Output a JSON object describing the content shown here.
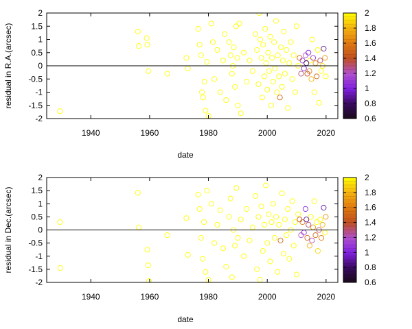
{
  "colors": {
    "background": "#ffffff",
    "axis": "#000000",
    "zero_line": "#000000",
    "palette_stops": [
      "#1a0a1a",
      "#6a0fb0",
      "#a040f0",
      "#c06030",
      "#e08020",
      "#f0b020",
      "#ffff00"
    ]
  },
  "chart_data": [
    {
      "type": "scatter",
      "title": "",
      "xlabel": "date",
      "ylabel": "residual in R.A.(arcsec)",
      "xlim": [
        1925,
        2024
      ],
      "ylim": [
        -2,
        2
      ],
      "xticks": [
        1940,
        1960,
        1980,
        2000,
        2020
      ],
      "yticks": [
        -2,
        -1.5,
        -1,
        -0.5,
        0,
        0.5,
        1,
        1.5,
        2
      ],
      "ytick_labels": [
        "-2",
        "-1.5",
        "-1",
        "-0.5",
        "0",
        "0.5",
        "1",
        "1.5",
        "2"
      ],
      "zero_line": true,
      "colorbar": {
        "range": [
          0.6,
          2
        ],
        "ticks": [
          0.6,
          0.8,
          1,
          1.2,
          1.4,
          1.6,
          1.8,
          2
        ],
        "tick_labels": [
          "0.6",
          "0.8",
          "1",
          "1.2",
          "1.4",
          "1.6",
          "1.8",
          "2"
        ]
      },
      "marker": "open-circle",
      "points": [
        {
          "x": 1929.5,
          "y": -1.72,
          "c": 2.0
        },
        {
          "x": 1956.0,
          "y": 1.3,
          "c": 2.0
        },
        {
          "x": 1956.3,
          "y": 0.75,
          "c": 2.0
        },
        {
          "x": 1959.0,
          "y": 1.05,
          "c": 2.0
        },
        {
          "x": 1959.2,
          "y": 0.8,
          "c": 2.0
        },
        {
          "x": 1959.6,
          "y": -0.2,
          "c": 2.0
        },
        {
          "x": 1966.0,
          "y": -0.3,
          "c": 2.0
        },
        {
          "x": 1972.5,
          "y": 0.3,
          "c": 2.0
        },
        {
          "x": 1973.0,
          "y": -0.1,
          "c": 2.0
        },
        {
          "x": 1976.5,
          "y": 1.4,
          "c": 2.0
        },
        {
          "x": 1977.0,
          "y": 0.8,
          "c": 2.0
        },
        {
          "x": 1977.5,
          "y": 0.4,
          "c": 2.0
        },
        {
          "x": 1977.8,
          "y": -1.0,
          "c": 2.0
        },
        {
          "x": 1978.2,
          "y": -1.2,
          "c": 2.0
        },
        {
          "x": 1978.6,
          "y": -0.6,
          "c": 2.0
        },
        {
          "x": 1979.0,
          "y": -1.7,
          "c": 2.0
        },
        {
          "x": 1979.5,
          "y": 0.15,
          "c": 2.0
        },
        {
          "x": 1980.0,
          "y": -1.9,
          "c": 2.0
        },
        {
          "x": 1981.0,
          "y": 1.6,
          "c": 2.0
        },
        {
          "x": 1981.5,
          "y": 0.9,
          "c": 2.0
        },
        {
          "x": 1982.0,
          "y": -0.5,
          "c": 2.0
        },
        {
          "x": 1983.0,
          "y": 0.6,
          "c": 2.0
        },
        {
          "x": 1984.0,
          "y": -1.0,
          "c": 2.0
        },
        {
          "x": 1985.0,
          "y": 0.2,
          "c": 2.0
        },
        {
          "x": 1985.5,
          "y": 1.2,
          "c": 2.0
        },
        {
          "x": 1986.0,
          "y": -1.3,
          "c": 2.0
        },
        {
          "x": 1987.0,
          "y": 0.9,
          "c": 2.0
        },
        {
          "x": 1987.5,
          "y": 0.4,
          "c": 2.0
        },
        {
          "x": 1988.0,
          "y": -0.3,
          "c": 2.0
        },
        {
          "x": 1988.3,
          "y": 0.0,
          "c": 2.0
        },
        {
          "x": 1988.6,
          "y": 0.7,
          "c": 2.0
        },
        {
          "x": 1989.0,
          "y": -0.8,
          "c": 2.0
        },
        {
          "x": 1989.4,
          "y": 1.5,
          "c": 2.0
        },
        {
          "x": 1989.8,
          "y": 0.3,
          "c": 2.0
        },
        {
          "x": 1990.0,
          "y": -1.5,
          "c": 2.0
        },
        {
          "x": 1990.5,
          "y": 1.6,
          "c": 2.0
        },
        {
          "x": 1991.0,
          "y": -1.8,
          "c": 2.0
        },
        {
          "x": 1992.0,
          "y": 0.5,
          "c": 2.0
        },
        {
          "x": 1993.0,
          "y": -0.6,
          "c": 2.0
        },
        {
          "x": 1994.0,
          "y": 0.2,
          "c": 2.0
        },
        {
          "x": 1995.0,
          "y": -0.2,
          "c": 2.0
        },
        {
          "x": 1996.0,
          "y": 1.2,
          "c": 2.0
        },
        {
          "x": 1996.5,
          "y": 0.6,
          "c": 2.0
        },
        {
          "x": 1997.0,
          "y": -0.7,
          "c": 2.0
        },
        {
          "x": 1997.3,
          "y": 2.0,
          "c": 2.0
        },
        {
          "x": 1997.6,
          "y": 1.0,
          "c": 2.0
        },
        {
          "x": 1998.0,
          "y": 0.3,
          "c": 2.0
        },
        {
          "x": 1998.3,
          "y": -1.2,
          "c": 2.0
        },
        {
          "x": 1998.6,
          "y": 0.8,
          "c": 2.0
        },
        {
          "x": 1999.0,
          "y": -0.4,
          "c": 2.0
        },
        {
          "x": 1999.3,
          "y": 1.4,
          "c": 2.0
        },
        {
          "x": 1999.6,
          "y": 0.1,
          "c": 2.0
        },
        {
          "x": 2000.0,
          "y": -0.9,
          "c": 2.0
        },
        {
          "x": 2000.3,
          "y": 0.5,
          "c": 2.0
        },
        {
          "x": 2000.6,
          "y": -0.2,
          "c": 2.0
        },
        {
          "x": 2001.0,
          "y": 1.1,
          "c": 2.0
        },
        {
          "x": 2001.3,
          "y": -1.5,
          "c": 2.0
        },
        {
          "x": 2001.6,
          "y": 0.3,
          "c": 2.0
        },
        {
          "x": 2002.0,
          "y": -0.6,
          "c": 2.0
        },
        {
          "x": 2002.3,
          "y": 0.9,
          "c": 2.0
        },
        {
          "x": 2002.6,
          "y": -0.1,
          "c": 2.0
        },
        {
          "x": 2003.0,
          "y": 1.7,
          "c": 2.0
        },
        {
          "x": 2003.3,
          "y": -1.0,
          "c": 2.0
        },
        {
          "x": 2003.6,
          "y": 0.4,
          "c": 2.0
        },
        {
          "x": 2004.0,
          "y": -0.4,
          "c": 2.0
        },
        {
          "x": 2004.3,
          "y": -1.2,
          "c": 1.5
        },
        {
          "x": 2004.6,
          "y": 0.7,
          "c": 2.0
        },
        {
          "x": 2005.0,
          "y": -0.8,
          "c": 2.0
        },
        {
          "x": 2005.3,
          "y": 0.2,
          "c": 2.0
        },
        {
          "x": 2005.6,
          "y": 1.3,
          "c": 2.0
        },
        {
          "x": 2006.0,
          "y": -0.3,
          "c": 2.0
        },
        {
          "x": 2006.5,
          "y": 0.6,
          "c": 2.0
        },
        {
          "x": 2007.0,
          "y": -1.6,
          "c": 2.0
        },
        {
          "x": 2007.5,
          "y": 0.1,
          "c": 2.0
        },
        {
          "x": 2008.0,
          "y": 0.9,
          "c": 2.0
        },
        {
          "x": 2008.5,
          "y": -0.5,
          "c": 2.0
        },
        {
          "x": 2009.0,
          "y": 0.4,
          "c": 2.0
        },
        {
          "x": 2009.5,
          "y": -1.0,
          "c": 2.0
        },
        {
          "x": 2010.0,
          "y": 1.5,
          "c": 2.0
        },
        {
          "x": 2010.5,
          "y": 0.0,
          "c": 2.0
        },
        {
          "x": 2011.0,
          "y": 0.3,
          "c": 1.5
        },
        {
          "x": 2011.5,
          "y": -0.3,
          "c": 1.3
        },
        {
          "x": 2012.0,
          "y": 0.2,
          "c": 1.1
        },
        {
          "x": 2012.5,
          "y": -0.1,
          "c": 1.0
        },
        {
          "x": 2013.0,
          "y": 0.4,
          "c": 1.2
        },
        {
          "x": 2013.3,
          "y": 0.1,
          "c": 0.8
        },
        {
          "x": 2013.6,
          "y": -0.3,
          "c": 1.4
        },
        {
          "x": 2014.0,
          "y": 0.5,
          "c": 1.0
        },
        {
          "x": 2014.3,
          "y": -0.2,
          "c": 1.6
        },
        {
          "x": 2014.6,
          "y": 0.2,
          "c": 2.0
        },
        {
          "x": 2015.0,
          "y": -0.5,
          "c": 1.8
        },
        {
          "x": 2015.3,
          "y": 1.0,
          "c": 2.0
        },
        {
          "x": 2015.6,
          "y": 0.3,
          "c": 1.1
        },
        {
          "x": 2016.0,
          "y": -1.0,
          "c": 2.0
        },
        {
          "x": 2016.4,
          "y": 0.1,
          "c": 1.7
        },
        {
          "x": 2016.8,
          "y": -0.4,
          "c": 1.5
        },
        {
          "x": 2017.2,
          "y": 0.6,
          "c": 2.0
        },
        {
          "x": 2017.6,
          "y": -1.4,
          "c": 2.0
        },
        {
          "x": 2018.0,
          "y": 0.2,
          "c": 1.3
        },
        {
          "x": 2018.4,
          "y": -0.2,
          "c": 2.0
        },
        {
          "x": 2018.8,
          "y": 0.0,
          "c": 1.9
        },
        {
          "x": 2019.2,
          "y": 0.65,
          "c": 0.9
        },
        {
          "x": 2019.6,
          "y": 0.3,
          "c": 1.7
        },
        {
          "x": 2019.9,
          "y": -0.4,
          "c": 2.0
        }
      ]
    },
    {
      "type": "scatter",
      "title": "",
      "xlabel": "date",
      "ylabel": "residual in Dec.(arcsec)",
      "xlim": [
        1925,
        2024
      ],
      "ylim": [
        -2,
        2
      ],
      "xticks": [
        1940,
        1960,
        1980,
        2000,
        2020
      ],
      "yticks": [
        -2,
        -1.5,
        -1,
        -0.5,
        0,
        0.5,
        1,
        1.5,
        2
      ],
      "ytick_labels": [
        "-2",
        "-1.5",
        "-1",
        "-0.5",
        "0",
        "0.5",
        "1",
        "1.5",
        "2"
      ],
      "zero_line": true,
      "colorbar": {
        "range": [
          0.6,
          2
        ],
        "ticks": [
          0.6,
          0.8,
          1,
          1.2,
          1.4,
          1.6,
          1.8,
          2
        ],
        "tick_labels": [
          "0.6",
          "0.8",
          "1",
          "1.2",
          "1.4",
          "1.6",
          "1.8",
          "2"
        ]
      },
      "marker": "open-circle",
      "points": [
        {
          "x": 1929.5,
          "y": 0.3,
          "c": 2.0
        },
        {
          "x": 1929.6,
          "y": -1.45,
          "c": 2.0
        },
        {
          "x": 1956.0,
          "y": 1.42,
          "c": 2.0
        },
        {
          "x": 1956.3,
          "y": 0.1,
          "c": 2.0
        },
        {
          "x": 1959.2,
          "y": -0.75,
          "c": 2.0
        },
        {
          "x": 1959.5,
          "y": -1.35,
          "c": 2.0
        },
        {
          "x": 1959.8,
          "y": -1.95,
          "c": 2.0
        },
        {
          "x": 1966.0,
          "y": -0.2,
          "c": 2.0
        },
        {
          "x": 1972.5,
          "y": 0.45,
          "c": 2.0
        },
        {
          "x": 1973.0,
          "y": -0.95,
          "c": 2.0
        },
        {
          "x": 1976.5,
          "y": 1.35,
          "c": 2.0
        },
        {
          "x": 1977.0,
          "y": 0.8,
          "c": 2.0
        },
        {
          "x": 1977.5,
          "y": -0.3,
          "c": 2.0
        },
        {
          "x": 1978.0,
          "y": -1.1,
          "c": 2.0
        },
        {
          "x": 1978.5,
          "y": 0.3,
          "c": 2.0
        },
        {
          "x": 1979.0,
          "y": -1.6,
          "c": 2.0
        },
        {
          "x": 1979.5,
          "y": 1.5,
          "c": 2.0
        },
        {
          "x": 1980.0,
          "y": -1.9,
          "c": 2.0
        },
        {
          "x": 1981.0,
          "y": 1.0,
          "c": 2.0
        },
        {
          "x": 1982.0,
          "y": -0.5,
          "c": 2.0
        },
        {
          "x": 1983.0,
          "y": 0.2,
          "c": 2.0
        },
        {
          "x": 1984.0,
          "y": 0.75,
          "c": 2.0
        },
        {
          "x": 1985.0,
          "y": -0.7,
          "c": 2.0
        },
        {
          "x": 1986.0,
          "y": -1.4,
          "c": 2.0
        },
        {
          "x": 1987.0,
          "y": 0.5,
          "c": 2.0
        },
        {
          "x": 1987.5,
          "y": 1.2,
          "c": 2.0
        },
        {
          "x": 1988.0,
          "y": -1.8,
          "c": 2.0
        },
        {
          "x": 1988.5,
          "y": 0.0,
          "c": 2.0
        },
        {
          "x": 1989.0,
          "y": -0.6,
          "c": 2.0
        },
        {
          "x": 1989.5,
          "y": 1.6,
          "c": 2.0
        },
        {
          "x": 1990.0,
          "y": -0.3,
          "c": 2.0
        },
        {
          "x": 1991.0,
          "y": 0.4,
          "c": 2.0
        },
        {
          "x": 1992.0,
          "y": -1.0,
          "c": 2.0
        },
        {
          "x": 1993.0,
          "y": 0.8,
          "c": 2.0
        },
        {
          "x": 1994.0,
          "y": -0.4,
          "c": 2.0
        },
        {
          "x": 1995.0,
          "y": 0.1,
          "c": 2.0
        },
        {
          "x": 1996.0,
          "y": 1.3,
          "c": 2.0
        },
        {
          "x": 1996.5,
          "y": -1.5,
          "c": 2.0
        },
        {
          "x": 1997.0,
          "y": 0.5,
          "c": 2.0
        },
        {
          "x": 1997.5,
          "y": -1.9,
          "c": 2.0
        },
        {
          "x": 1998.0,
          "y": 0.9,
          "c": 2.0
        },
        {
          "x": 1998.5,
          "y": -0.8,
          "c": 2.0
        },
        {
          "x": 1999.0,
          "y": 0.2,
          "c": 2.0
        },
        {
          "x": 1999.5,
          "y": 1.7,
          "c": 2.0
        },
        {
          "x": 2000.0,
          "y": -0.5,
          "c": 2.0
        },
        {
          "x": 2000.5,
          "y": 0.6,
          "c": 2.0
        },
        {
          "x": 2001.0,
          "y": -1.2,
          "c": 2.0
        },
        {
          "x": 2001.5,
          "y": 0.3,
          "c": 2.0
        },
        {
          "x": 2002.0,
          "y": 1.0,
          "c": 2.0
        },
        {
          "x": 2002.5,
          "y": -0.3,
          "c": 2.0
        },
        {
          "x": 2003.0,
          "y": 0.5,
          "c": 2.0
        },
        {
          "x": 2003.5,
          "y": -1.6,
          "c": 2.0
        },
        {
          "x": 2004.0,
          "y": 0.2,
          "c": 2.0
        },
        {
          "x": 2004.5,
          "y": -0.4,
          "c": 1.5
        },
        {
          "x": 2005.0,
          "y": 1.4,
          "c": 2.0
        },
        {
          "x": 2005.5,
          "y": -0.9,
          "c": 2.0
        },
        {
          "x": 2006.0,
          "y": 0.4,
          "c": 2.0
        },
        {
          "x": 2006.5,
          "y": -0.2,
          "c": 2.0
        },
        {
          "x": 2007.0,
          "y": 0.8,
          "c": 2.0
        },
        {
          "x": 2007.5,
          "y": -1.1,
          "c": 2.0
        },
        {
          "x": 2008.0,
          "y": 0.0,
          "c": 2.0
        },
        {
          "x": 2008.5,
          "y": 1.1,
          "c": 2.0
        },
        {
          "x": 2009.0,
          "y": -0.6,
          "c": 2.0
        },
        {
          "x": 2009.5,
          "y": 0.3,
          "c": 2.0
        },
        {
          "x": 2010.0,
          "y": -1.7,
          "c": 2.0
        },
        {
          "x": 2010.5,
          "y": 0.6,
          "c": 2.0
        },
        {
          "x": 2011.0,
          "y": 0.4,
          "c": 1.4
        },
        {
          "x": 2011.5,
          "y": -0.2,
          "c": 1.2
        },
        {
          "x": 2012.0,
          "y": 0.3,
          "c": 1.6
        },
        {
          "x": 2012.5,
          "y": -0.1,
          "c": 1.1
        },
        {
          "x": 2013.0,
          "y": 0.8,
          "c": 1.0
        },
        {
          "x": 2013.3,
          "y": 0.4,
          "c": 0.9
        },
        {
          "x": 2013.6,
          "y": -0.3,
          "c": 1.5
        },
        {
          "x": 2014.0,
          "y": 0.2,
          "c": 1.3
        },
        {
          "x": 2014.4,
          "y": -0.6,
          "c": 1.8
        },
        {
          "x": 2014.8,
          "y": 0.5,
          "c": 2.0
        },
        {
          "x": 2015.2,
          "y": -0.4,
          "c": 1.2
        },
        {
          "x": 2015.6,
          "y": 0.1,
          "c": 1.7
        },
        {
          "x": 2016.0,
          "y": 1.1,
          "c": 2.0
        },
        {
          "x": 2016.4,
          "y": -0.2,
          "c": 1.5
        },
        {
          "x": 2016.8,
          "y": 0.3,
          "c": 2.0
        },
        {
          "x": 2017.2,
          "y": -0.8,
          "c": 1.9
        },
        {
          "x": 2017.6,
          "y": 0.0,
          "c": 1.3
        },
        {
          "x": 2018.0,
          "y": 0.4,
          "c": 2.0
        },
        {
          "x": 2018.4,
          "y": -0.3,
          "c": 1.6
        },
        {
          "x": 2018.8,
          "y": 0.2,
          "c": 1.8
        },
        {
          "x": 2019.2,
          "y": 0.85,
          "c": 0.9
        },
        {
          "x": 2019.6,
          "y": -0.1,
          "c": 2.0
        },
        {
          "x": 2019.9,
          "y": 0.5,
          "c": 1.7
        }
      ]
    }
  ]
}
